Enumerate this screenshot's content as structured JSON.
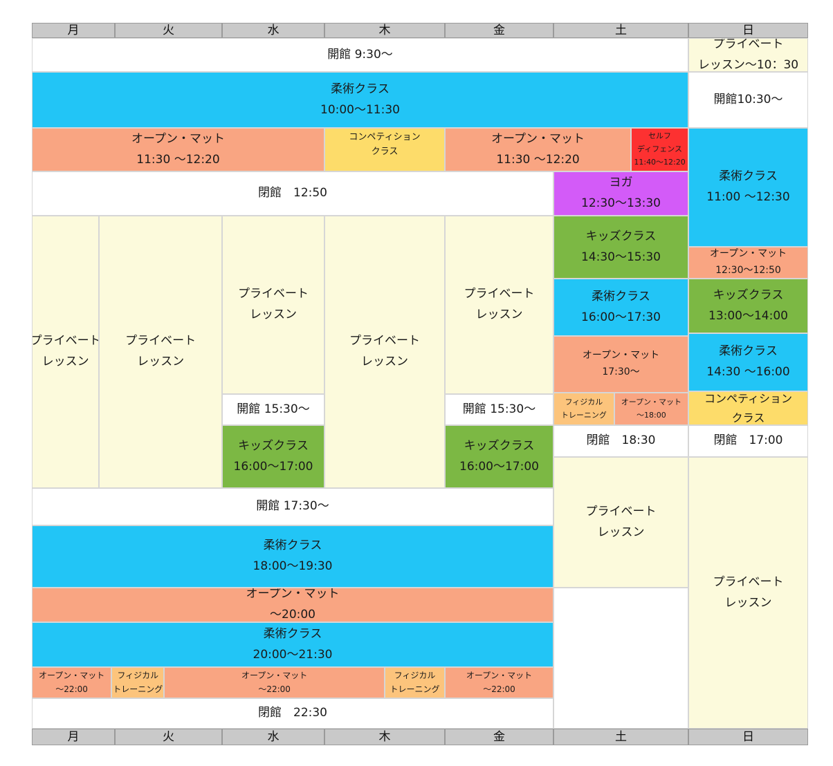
{
  "colors": {
    "white": "#ffffff",
    "cream": "#fcfadc",
    "jujutsu": "#22c5f6",
    "open_mat": "#f9a582",
    "competition": "#fddc6a",
    "self_defense": "#fd3131",
    "yoga": "#d35bf8",
    "kids": "#7cb844",
    "physical": "#fcc47c",
    "header": "#c9c9c9"
  },
  "days": [
    "月",
    "火",
    "水",
    "木",
    "金",
    "土",
    "日"
  ],
  "cells": [
    {
      "id": "open-930",
      "name": "opening-time",
      "col": [
        0,
        6
      ],
      "row": [
        55,
        104
      ],
      "color": "white",
      "size": "f17",
      "lines": [
        "開館 9:30〜"
      ]
    },
    {
      "id": "sun-private-am",
      "name": "private-lesson",
      "col": [
        6,
        7
      ],
      "row": [
        55,
        104
      ],
      "color": "cream",
      "size": "f17",
      "lines": [
        "プライベート",
        "レッスン〜10：30"
      ]
    },
    {
      "id": "jujutsu-1000",
      "name": "jujutsu-class",
      "col": [
        0,
        6
      ],
      "row": [
        104,
        185
      ],
      "color": "jujutsu",
      "size": "f17",
      "lines": [
        "柔術クラス",
        "10:00〜11:30"
      ]
    },
    {
      "id": "sun-open-1030",
      "name": "opening-time",
      "col": [
        6,
        7
      ],
      "row": [
        104,
        185
      ],
      "color": "white",
      "size": "f17",
      "lines": [
        "開館10:30〜"
      ]
    },
    {
      "id": "openmat-1130-a",
      "name": "open-mat",
      "col": [
        0,
        3
      ],
      "row": [
        185,
        248
      ],
      "color": "open_mat",
      "size": "f17",
      "lines": [
        "オープン・マット",
        "11:30 〜12:20"
      ]
    },
    {
      "id": "competition-thu",
      "name": "competition-class",
      "col": [
        3,
        4
      ],
      "row": [
        185,
        248
      ],
      "color": "competition",
      "size": "f13",
      "valign": "top",
      "lines": [
        "コンペティション",
        "クラス"
      ]
    },
    {
      "id": "openmat-1130-b",
      "name": "open-mat",
      "col": [
        4,
        5.575
      ],
      "row": [
        185,
        248
      ],
      "color": "open_mat",
      "size": "f17",
      "lines": [
        "オープン・マット",
        "11:30 〜12:20"
      ]
    },
    {
      "id": "self-defense",
      "name": "self-defense-class",
      "col": [
        5.575,
        6
      ],
      "row": [
        185,
        248
      ],
      "color": "self_defense",
      "size": "f11",
      "lines": [
        "セルフ",
        "ディフェンス",
        "11:40〜12:20"
      ]
    },
    {
      "id": "sun-jujutsu-1100",
      "name": "jujutsu-class",
      "col": [
        6,
        7
      ],
      "row": [
        185,
        357
      ],
      "color": "jujutsu",
      "size": "f17",
      "lines": [
        "柔術クラス",
        "11:00 〜12:30"
      ]
    },
    {
      "id": "close-1250",
      "name": "closing-time",
      "col": [
        0,
        5
      ],
      "row": [
        248,
        312
      ],
      "color": "white",
      "size": "f17",
      "lines": [
        "閉館　12:50"
      ]
    },
    {
      "id": "yoga",
      "name": "yoga-class",
      "col": [
        5,
        6
      ],
      "row": [
        248,
        312
      ],
      "color": "yoga",
      "size": "f17",
      "lines": [
        "ヨガ",
        "12:30〜13:30"
      ]
    },
    {
      "id": "mon-private",
      "name": "private-lesson",
      "col": [
        0,
        0.81
      ],
      "row": [
        312,
        706
      ],
      "color": "cream",
      "size": "f17",
      "lines": [
        "プライベート",
        "レッスン"
      ]
    },
    {
      "id": "tue-private",
      "name": "private-lesson",
      "col": [
        0.81,
        2
      ],
      "row": [
        312,
        706
      ],
      "color": "cream",
      "size": "f17",
      "lines": [
        "プライベート",
        "レッスン"
      ]
    },
    {
      "id": "wed-private",
      "name": "private-lesson",
      "col": [
        2,
        3
      ],
      "row": [
        312,
        570
      ],
      "color": "cream",
      "size": "f17",
      "lines": [
        "プライベート",
        "レッスン"
      ]
    },
    {
      "id": "thu-private",
      "name": "private-lesson",
      "col": [
        3,
        4
      ],
      "row": [
        312,
        706
      ],
      "color": "cream",
      "size": "f17",
      "lines": [
        "プライベート",
        "レッスン"
      ]
    },
    {
      "id": "fri-private",
      "name": "private-lesson",
      "col": [
        4,
        5
      ],
      "row": [
        312,
        570
      ],
      "color": "cream",
      "size": "f17",
      "lines": [
        "プライベート",
        "レッスン"
      ]
    },
    {
      "id": "sat-kids-1430",
      "name": "kids-class",
      "col": [
        5,
        6
      ],
      "row": [
        312,
        403
      ],
      "color": "kids",
      "size": "f17",
      "lines": [
        "キッズクラス",
        "14:30〜15:30"
      ]
    },
    {
      "id": "sun-openmat-1230",
      "name": "open-mat",
      "col": [
        6,
        7
      ],
      "row": [
        357,
        403
      ],
      "color": "open_mat",
      "size": "f14",
      "lines": [
        "オープン・マット",
        "12:30〜12:50"
      ]
    },
    {
      "id": "sat-jujutsu-1600",
      "name": "jujutsu-class",
      "col": [
        5,
        6
      ],
      "row": [
        403,
        486
      ],
      "color": "jujutsu",
      "size": "f17",
      "lines": [
        "柔術クラス",
        "16:00〜17:30"
      ]
    },
    {
      "id": "sun-kids-1300",
      "name": "kids-class",
      "col": [
        6,
        7
      ],
      "row": [
        403,
        482
      ],
      "color": "kids",
      "size": "f17",
      "lines": [
        "キッズクラス",
        "13:00〜14:00"
      ]
    },
    {
      "id": "sat-openmat-1730",
      "name": "open-mat",
      "col": [
        5,
        6
      ],
      "row": [
        486,
        568
      ],
      "color": "open_mat",
      "size": "f14",
      "lines": [
        "オープン・マット",
        "17:30〜"
      ]
    },
    {
      "id": "sun-jujutsu-1430",
      "name": "jujutsu-class",
      "col": [
        6,
        7
      ],
      "row": [
        482,
        566
      ],
      "color": "jujutsu",
      "size": "f17",
      "lines": [
        "柔術クラス",
        "14:30 〜16:00"
      ]
    },
    {
      "id": "sun-competition",
      "name": "competition-class",
      "col": [
        6,
        7
      ],
      "row": [
        566,
        615
      ],
      "color": "competition",
      "size": "f16",
      "lines": [
        "コンペティション",
        "クラス"
      ]
    },
    {
      "id": "wed-open-1530",
      "name": "opening-time",
      "col": [
        2,
        3
      ],
      "row": [
        570,
        615
      ],
      "color": "white",
      "size": "f17",
      "lines": [
        "開館 15:30〜"
      ]
    },
    {
      "id": "fri-open-1530",
      "name": "opening-time",
      "col": [
        4,
        5
      ],
      "row": [
        570,
        615
      ],
      "color": "white",
      "size": "f17",
      "lines": [
        "開館 15:30〜"
      ]
    },
    {
      "id": "sat-physical",
      "name": "physical-training",
      "col": [
        5,
        5.45
      ],
      "row": [
        568,
        615
      ],
      "color": "physical",
      "size": "f11",
      "lines": [
        "フィジカル",
        "トレーニング"
      ]
    },
    {
      "id": "sat-openmat-1800",
      "name": "open-mat",
      "col": [
        5.45,
        6
      ],
      "row": [
        568,
        615
      ],
      "color": "open_mat",
      "size": "f11",
      "lines": [
        "オープン・マット",
        "〜18:00"
      ]
    },
    {
      "id": "sat-close-1830",
      "name": "closing-time",
      "col": [
        5,
        6
      ],
      "row": [
        615,
        661
      ],
      "color": "white",
      "size": "f17",
      "lines": [
        "閉館　18:30"
      ]
    },
    {
      "id": "sun-close-1700",
      "name": "closing-time",
      "col": [
        6,
        7
      ],
      "row": [
        615,
        661
      ],
      "color": "white",
      "size": "f17",
      "lines": [
        "閉館　17:00"
      ]
    },
    {
      "id": "wed-kids-1600",
      "name": "kids-class",
      "col": [
        2,
        3
      ],
      "row": [
        615,
        706
      ],
      "color": "kids",
      "size": "f17",
      "lines": [
        "キッズクラス",
        "16:00〜17:00"
      ]
    },
    {
      "id": "fri-kids-1600",
      "name": "kids-class",
      "col": [
        4,
        5
      ],
      "row": [
        615,
        706
      ],
      "color": "kids",
      "size": "f17",
      "lines": [
        "キッズクラス",
        "16:00〜17:00"
      ]
    },
    {
      "id": "sat-private-pm",
      "name": "private-lesson",
      "col": [
        5,
        6
      ],
      "row": [
        661,
        850
      ],
      "color": "cream",
      "size": "f17",
      "lines": [
        "プライベート",
        "レッスン"
      ]
    },
    {
      "id": "sun-private-pm",
      "name": "private-lesson",
      "col": [
        6,
        7
      ],
      "row": [
        661,
        1054
      ],
      "color": "cream",
      "size": "f17",
      "lines": [
        "プライベート",
        "レッスン"
      ]
    },
    {
      "id": "open-1730",
      "name": "opening-time",
      "col": [
        0,
        5
      ],
      "row": [
        706,
        760
      ],
      "color": "white",
      "size": "f17",
      "lines": [
        "開館 17:30〜"
      ]
    },
    {
      "id": "jujutsu-1800",
      "name": "jujutsu-class",
      "col": [
        0,
        5
      ],
      "row": [
        760,
        850
      ],
      "color": "jujutsu",
      "size": "f17",
      "lines": [
        "柔術クラス",
        "18:00〜19:30"
      ]
    },
    {
      "id": "sat-empty",
      "name": "empty-slot",
      "col": [
        5,
        6
      ],
      "row": [
        850,
        1054
      ],
      "color": "white",
      "size": "f17",
      "lines": []
    },
    {
      "id": "openmat-2000",
      "name": "open-mat",
      "col": [
        0,
        5
      ],
      "row": [
        850,
        900
      ],
      "color": "open_mat",
      "size": "f17",
      "lines": [
        "オープン・マット",
        "〜20:00"
      ]
    },
    {
      "id": "jujutsu-2000",
      "name": "jujutsu-class",
      "col": [
        0,
        5
      ],
      "row": [
        900,
        965
      ],
      "color": "jujutsu",
      "size": "f17",
      "lines": [
        "柔術クラス",
        "20:00〜21:30"
      ]
    },
    {
      "id": "mon-openmat-2200",
      "name": "open-mat",
      "col": [
        0,
        0.96
      ],
      "row": [
        965,
        1010
      ],
      "color": "open_mat",
      "size": "f12",
      "lines": [
        "オープン・マット",
        "〜22:00"
      ]
    },
    {
      "id": "tue-physical",
      "name": "physical-training",
      "col": [
        0.96,
        1.46
      ],
      "row": [
        965,
        1010
      ],
      "color": "physical",
      "size": "f12",
      "lines": [
        "フィジカル",
        "トレーニング"
      ]
    },
    {
      "id": "midweek-openmat-2200",
      "name": "open-mat",
      "col": [
        1.46,
        3.5
      ],
      "row": [
        965,
        1010
      ],
      "color": "open_mat",
      "size": "f12",
      "lines": [
        "オープン・マット",
        "〜22:00"
      ]
    },
    {
      "id": "thu-physical",
      "name": "physical-training",
      "col": [
        3.5,
        4
      ],
      "row": [
        965,
        1010
      ],
      "color": "physical",
      "size": "f12",
      "lines": [
        "フィジカル",
        "トレーニング"
      ]
    },
    {
      "id": "fri-openmat-2200",
      "name": "open-mat",
      "col": [
        4,
        5
      ],
      "row": [
        965,
        1010
      ],
      "color": "open_mat",
      "size": "f12",
      "lines": [
        "オープン・マット",
        "〜22:00"
      ]
    },
    {
      "id": "close-2230",
      "name": "closing-time",
      "col": [
        0,
        5
      ],
      "row": [
        1010,
        1054
      ],
      "color": "white",
      "size": "f17",
      "lines": [
        "閉館　22:30"
      ]
    }
  ]
}
